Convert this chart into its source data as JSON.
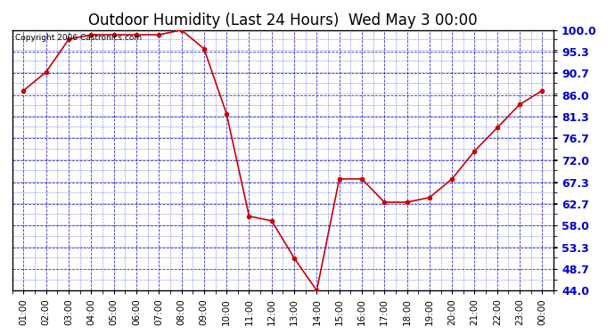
{
  "title": "Outdoor Humidity (Last 24 Hours)  Wed May 3 00:00",
  "copyright_text": "Copyright 2006 Castronics.com",
  "x_labels": [
    "01:00",
    "02:00",
    "03:00",
    "04:00",
    "05:00",
    "06:00",
    "07:00",
    "08:00",
    "09:00",
    "10:00",
    "11:00",
    "12:00",
    "13:00",
    "14:00",
    "15:00",
    "16:00",
    "17:00",
    "18:00",
    "19:00",
    "20:00",
    "21:00",
    "22:00",
    "23:00",
    "00:00"
  ],
  "y_values": [
    87,
    91,
    98,
    99,
    99,
    99,
    99,
    100,
    96,
    82,
    60,
    59,
    51,
    44,
    68,
    68,
    63,
    63,
    64,
    68,
    74,
    79,
    84,
    87
  ],
  "y_min": 44.0,
  "y_max": 100.0,
  "y_ticks": [
    44.0,
    48.7,
    53.3,
    58.0,
    62.7,
    67.3,
    72.0,
    76.7,
    81.3,
    86.0,
    90.7,
    95.3,
    100.0
  ],
  "line_color": "#cc0000",
  "marker_color": "#cc0000",
  "fig_bg_color": "#ffffff",
  "plot_bg_color": "#ffffff",
  "grid_color": "#0000cc",
  "title_fontsize": 12,
  "copyright_fontsize": 6.5,
  "tick_fontsize": 7.5,
  "ytick_fontsize": 9,
  "border_color": "#000000"
}
